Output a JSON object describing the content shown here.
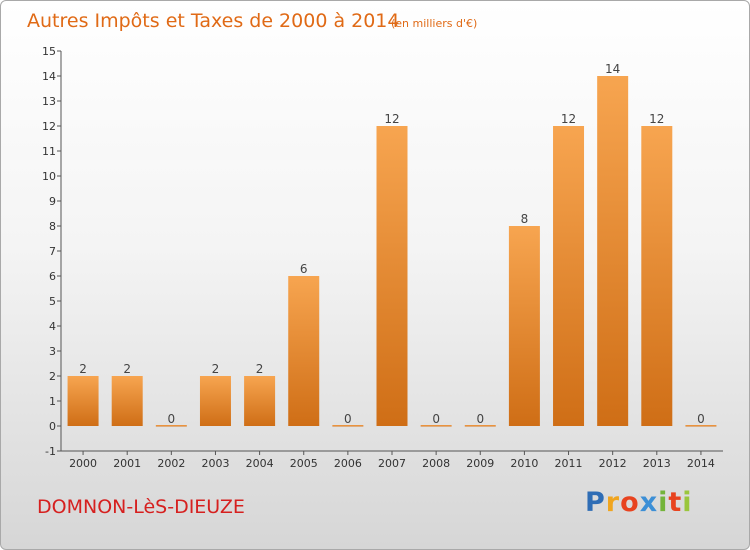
{
  "chart_data": {
    "type": "bar",
    "title": "Autres Impôts et Taxes de 2000 à 2014",
    "unit_note": "(en milliers d'€)",
    "categories": [
      "2000",
      "2001",
      "2002",
      "2003",
      "2004",
      "2005",
      "2006",
      "2007",
      "2008",
      "2009",
      "2010",
      "2011",
      "2012",
      "2013",
      "2014"
    ],
    "values": [
      2,
      2,
      0,
      2,
      2,
      6,
      0,
      12,
      0,
      0,
      8,
      12,
      14,
      12,
      0
    ],
    "value_labels": [
      "2",
      "2",
      "0",
      "2",
      "2",
      "6",
      "0",
      "12",
      "0",
      "0",
      "8",
      "12",
      "14",
      "12",
      "0"
    ],
    "yticks": [
      "-1",
      "0",
      "1",
      "2",
      "3",
      "4",
      "5",
      "6",
      "7",
      "8",
      "9",
      "10",
      "11",
      "12",
      "13",
      "14",
      "15"
    ],
    "ylim": [
      -1,
      15
    ],
    "xlabel": "",
    "ylabel": "",
    "grid": false,
    "bar_color_light": "#f7a550",
    "bar_color_dark": "#cf6e16"
  },
  "place_name": "DOMNON-LèS-DIEUZE",
  "logo": {
    "letters": [
      "P",
      "r",
      "o",
      "x",
      "i",
      "t",
      "i"
    ]
  }
}
